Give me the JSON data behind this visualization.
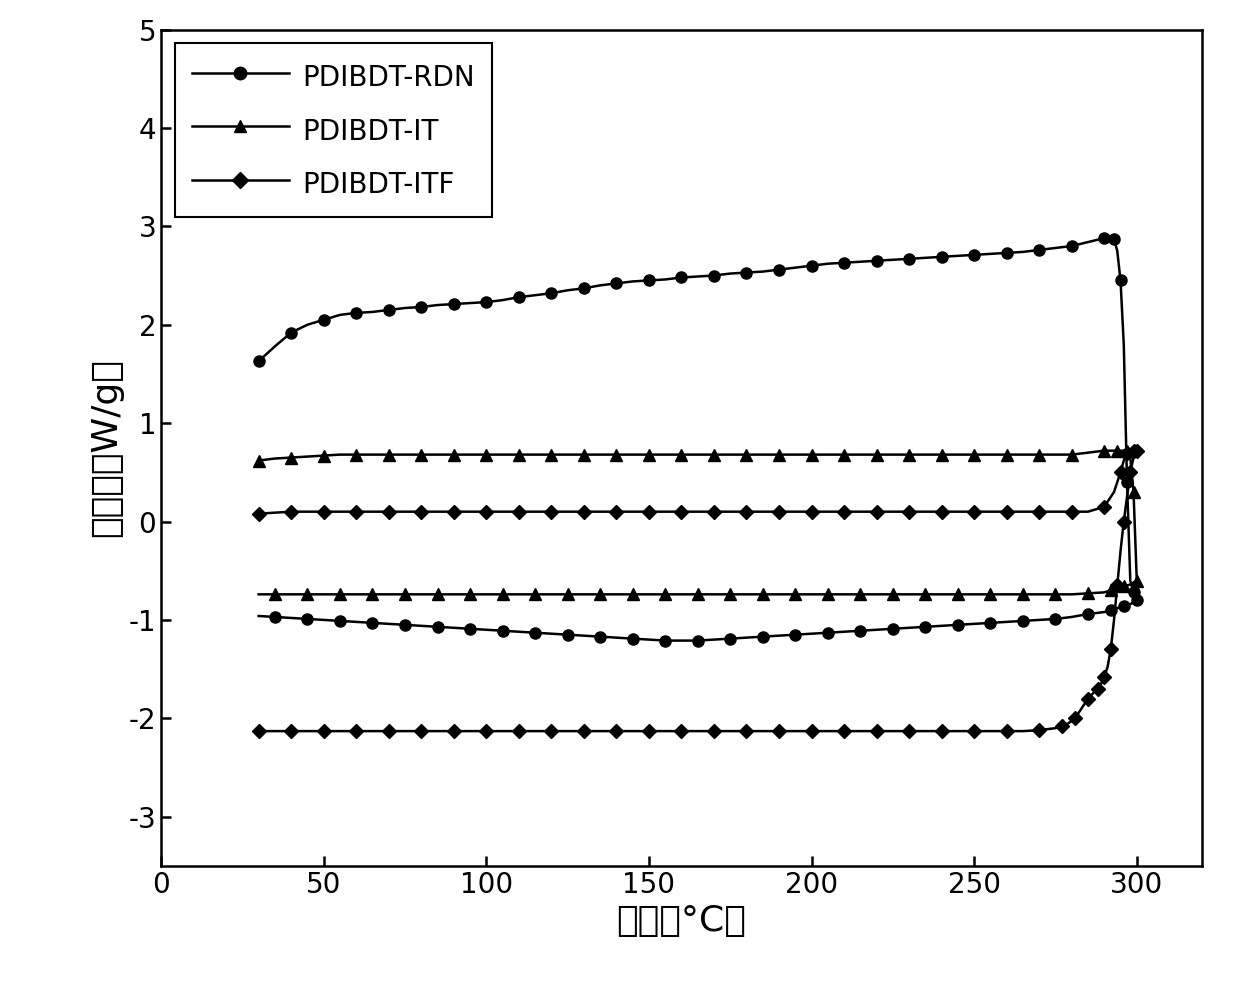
{
  "title": "",
  "xlabel": "温度（°C）",
  "ylabel": "热流量（W/g）",
  "xlim": [
    0,
    320
  ],
  "ylim": [
    -3.5,
    5
  ],
  "xticks": [
    0,
    50,
    100,
    150,
    200,
    250,
    300
  ],
  "yticks": [
    -3,
    -2,
    -1,
    0,
    1,
    2,
    3,
    4,
    5
  ],
  "background_color": "#ffffff",
  "line_color": "#000000",
  "series": [
    {
      "label": "PDIBDT-RDN",
      "marker": "o",
      "markersize": 8,
      "heat_x": [
        30,
        35,
        40,
        45,
        50,
        55,
        60,
        65,
        70,
        75,
        80,
        85,
        90,
        95,
        100,
        105,
        110,
        115,
        120,
        125,
        130,
        135,
        140,
        145,
        150,
        155,
        160,
        165,
        170,
        175,
        180,
        185,
        190,
        195,
        200,
        205,
        210,
        215,
        220,
        225,
        230,
        235,
        240,
        245,
        250,
        255,
        260,
        265,
        270,
        275,
        280,
        285,
        290,
        292,
        293,
        294,
        295,
        296,
        297,
        298,
        299,
        300
      ],
      "heat_y": [
        1.63,
        1.78,
        1.92,
        2.0,
        2.05,
        2.1,
        2.12,
        2.13,
        2.15,
        2.17,
        2.18,
        2.2,
        2.21,
        2.22,
        2.23,
        2.25,
        2.28,
        2.3,
        2.32,
        2.35,
        2.37,
        2.4,
        2.42,
        2.44,
        2.45,
        2.46,
        2.48,
        2.49,
        2.5,
        2.52,
        2.53,
        2.54,
        2.56,
        2.58,
        2.6,
        2.62,
        2.63,
        2.64,
        2.65,
        2.66,
        2.67,
        2.68,
        2.69,
        2.7,
        2.71,
        2.72,
        2.73,
        2.74,
        2.76,
        2.78,
        2.8,
        2.84,
        2.88,
        2.88,
        2.87,
        2.75,
        2.45,
        1.8,
        0.4,
        -0.6,
        -0.72,
        -0.8
      ],
      "cool_x": [
        300,
        298,
        296,
        294,
        292,
        290,
        285,
        280,
        275,
        270,
        265,
        260,
        255,
        250,
        245,
        240,
        235,
        230,
        225,
        220,
        215,
        210,
        205,
        200,
        195,
        190,
        185,
        180,
        175,
        170,
        165,
        160,
        155,
        150,
        145,
        140,
        135,
        130,
        125,
        120,
        115,
        110,
        105,
        100,
        95,
        90,
        85,
        80,
        75,
        70,
        65,
        60,
        55,
        50,
        45,
        40,
        35,
        30
      ],
      "cool_y": [
        -0.8,
        -0.84,
        -0.86,
        -0.88,
        -0.9,
        -0.92,
        -0.94,
        -0.97,
        -0.99,
        -1.0,
        -1.01,
        -1.02,
        -1.03,
        -1.04,
        -1.05,
        -1.06,
        -1.07,
        -1.08,
        -1.09,
        -1.1,
        -1.11,
        -1.12,
        -1.13,
        -1.14,
        -1.15,
        -1.16,
        -1.17,
        -1.18,
        -1.19,
        -1.2,
        -1.21,
        -1.21,
        -1.21,
        -1.2,
        -1.19,
        -1.18,
        -1.17,
        -1.16,
        -1.15,
        -1.14,
        -1.13,
        -1.12,
        -1.11,
        -1.1,
        -1.09,
        -1.08,
        -1.07,
        -1.06,
        -1.05,
        -1.04,
        -1.03,
        -1.02,
        -1.01,
        -1.0,
        -0.99,
        -0.98,
        -0.97,
        -0.96
      ]
    },
    {
      "label": "PDIBDT-IT",
      "marker": "^",
      "markersize": 8,
      "heat_x": [
        30,
        35,
        40,
        45,
        50,
        55,
        60,
        65,
        70,
        75,
        80,
        85,
        90,
        95,
        100,
        105,
        110,
        115,
        120,
        125,
        130,
        135,
        140,
        145,
        150,
        155,
        160,
        165,
        170,
        175,
        180,
        185,
        190,
        195,
        200,
        205,
        210,
        215,
        220,
        225,
        230,
        235,
        240,
        245,
        250,
        255,
        260,
        265,
        270,
        275,
        280,
        285,
        290,
        292,
        294,
        296,
        297,
        298,
        299,
        300
      ],
      "heat_y": [
        0.62,
        0.64,
        0.65,
        0.66,
        0.67,
        0.68,
        0.68,
        0.68,
        0.68,
        0.68,
        0.68,
        0.68,
        0.68,
        0.68,
        0.68,
        0.68,
        0.68,
        0.68,
        0.68,
        0.68,
        0.68,
        0.68,
        0.68,
        0.68,
        0.68,
        0.68,
        0.68,
        0.68,
        0.68,
        0.68,
        0.68,
        0.68,
        0.68,
        0.68,
        0.68,
        0.68,
        0.68,
        0.68,
        0.68,
        0.68,
        0.68,
        0.68,
        0.68,
        0.68,
        0.68,
        0.68,
        0.68,
        0.68,
        0.68,
        0.68,
        0.68,
        0.7,
        0.72,
        0.72,
        0.72,
        0.72,
        0.72,
        0.65,
        0.3,
        -0.6
      ],
      "cool_x": [
        300,
        298,
        296,
        294,
        292,
        290,
        285,
        280,
        275,
        270,
        265,
        260,
        255,
        250,
        245,
        240,
        235,
        230,
        225,
        220,
        215,
        210,
        205,
        200,
        195,
        190,
        185,
        180,
        175,
        170,
        165,
        160,
        155,
        150,
        145,
        140,
        135,
        130,
        125,
        120,
        115,
        110,
        105,
        100,
        95,
        90,
        85,
        80,
        75,
        70,
        65,
        60,
        55,
        50,
        45,
        40,
        35,
        30
      ],
      "cool_y": [
        -0.6,
        -0.64,
        -0.66,
        -0.68,
        -0.7,
        -0.72,
        -0.73,
        -0.74,
        -0.74,
        -0.74,
        -0.74,
        -0.74,
        -0.74,
        -0.74,
        -0.74,
        -0.74,
        -0.74,
        -0.74,
        -0.74,
        -0.74,
        -0.74,
        -0.74,
        -0.74,
        -0.74,
        -0.74,
        -0.74,
        -0.74,
        -0.74,
        -0.74,
        -0.74,
        -0.74,
        -0.74,
        -0.74,
        -0.74,
        -0.74,
        -0.74,
        -0.74,
        -0.74,
        -0.74,
        -0.74,
        -0.74,
        -0.74,
        -0.74,
        -0.74,
        -0.74,
        -0.74,
        -0.74,
        -0.74,
        -0.74,
        -0.74,
        -0.74,
        -0.74,
        -0.74,
        -0.74,
        -0.74,
        -0.74,
        -0.74,
        -0.74
      ]
    },
    {
      "label": "PDIBDT-ITF",
      "marker": "D",
      "markersize": 7,
      "heat_x": [
        30,
        35,
        40,
        45,
        50,
        55,
        60,
        65,
        70,
        75,
        80,
        85,
        90,
        95,
        100,
        105,
        110,
        115,
        120,
        125,
        130,
        135,
        140,
        145,
        150,
        155,
        160,
        165,
        170,
        175,
        180,
        185,
        190,
        195,
        200,
        205,
        210,
        215,
        220,
        225,
        230,
        235,
        240,
        245,
        250,
        255,
        260,
        265,
        270,
        275,
        280,
        285,
        290,
        293,
        295,
        296,
        297,
        298,
        299,
        300
      ],
      "heat_y": [
        0.08,
        0.09,
        0.1,
        0.1,
        0.1,
        0.1,
        0.1,
        0.1,
        0.1,
        0.1,
        0.1,
        0.1,
        0.1,
        0.1,
        0.1,
        0.1,
        0.1,
        0.1,
        0.1,
        0.1,
        0.1,
        0.1,
        0.1,
        0.1,
        0.1,
        0.1,
        0.1,
        0.1,
        0.1,
        0.1,
        0.1,
        0.1,
        0.1,
        0.1,
        0.1,
        0.1,
        0.1,
        0.1,
        0.1,
        0.1,
        0.1,
        0.1,
        0.1,
        0.1,
        0.1,
        0.1,
        0.1,
        0.1,
        0.1,
        0.1,
        0.1,
        0.1,
        0.15,
        0.3,
        0.5,
        0.62,
        0.7,
        0.72,
        0.72,
        0.72
      ],
      "cool_x": [
        300,
        299,
        298,
        297,
        296,
        295,
        294,
        293,
        292,
        291,
        290,
        289,
        288,
        287,
        285,
        283,
        281,
        279,
        277,
        275,
        270,
        265,
        260,
        255,
        250,
        245,
        240,
        235,
        230,
        225,
        220,
        215,
        210,
        205,
        200,
        195,
        190,
        185,
        180,
        175,
        170,
        165,
        160,
        155,
        150,
        145,
        140,
        135,
        130,
        125,
        120,
        115,
        110,
        105,
        100,
        95,
        90,
        85,
        80,
        75,
        70,
        65,
        60,
        55,
        50,
        45,
        40,
        35,
        30
      ],
      "cool_y": [
        0.72,
        0.65,
        0.5,
        0.25,
        0.0,
        -0.3,
        -0.65,
        -1.0,
        -1.3,
        -1.48,
        -1.58,
        -1.65,
        -1.7,
        -1.73,
        -1.8,
        -1.9,
        -2.0,
        -2.05,
        -2.08,
        -2.1,
        -2.12,
        -2.13,
        -2.13,
        -2.13,
        -2.13,
        -2.13,
        -2.13,
        -2.13,
        -2.13,
        -2.13,
        -2.13,
        -2.13,
        -2.13,
        -2.13,
        -2.13,
        -2.13,
        -2.13,
        -2.13,
        -2.13,
        -2.13,
        -2.13,
        -2.13,
        -2.13,
        -2.13,
        -2.13,
        -2.13,
        -2.13,
        -2.13,
        -2.13,
        -2.13,
        -2.13,
        -2.13,
        -2.13,
        -2.13,
        -2.13,
        -2.13,
        -2.13,
        -2.13,
        -2.13,
        -2.13,
        -2.13,
        -2.13,
        -2.13,
        -2.13,
        -2.13,
        -2.13,
        -2.13,
        -2.13,
        -2.13
      ]
    }
  ]
}
